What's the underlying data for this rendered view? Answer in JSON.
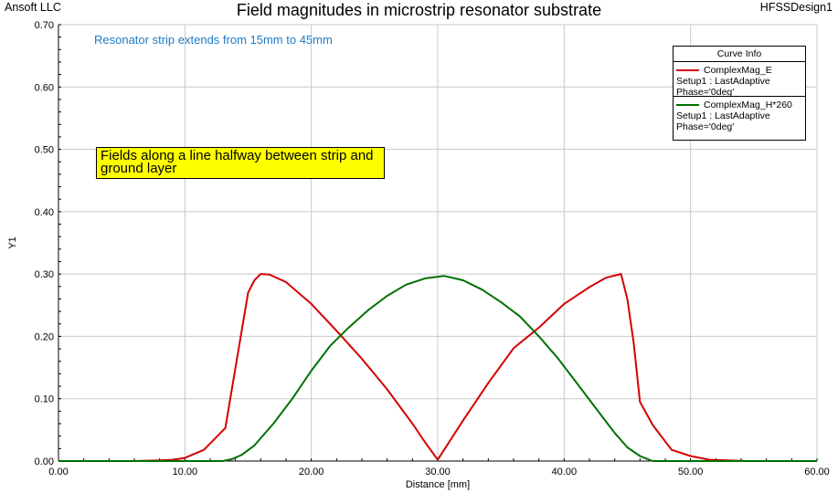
{
  "header": {
    "company": "Ansoft LLC",
    "design": "HFSSDesign1"
  },
  "annotations": {
    "strip_note": "Resonator strip extends from 15mm to 45mm",
    "fields_note": "Fields along a line halfway between strip and ground layer",
    "colors": {
      "strip_note": "#1e7cc8",
      "fields_box": "#ffff00"
    }
  },
  "legend": {
    "title": "Curve Info",
    "entries": [
      {
        "name": "ComplexMag_E",
        "line2": "Setup1 : LastAdaptive",
        "line3": "Phase='0deg'",
        "color": "#d40000"
      },
      {
        "name": "ComplexMag_H*260",
        "line2": "Setup1 : LastAdaptive",
        "line3": "Phase='0deg'",
        "color": "#007000"
      }
    ]
  },
  "chart_data": {
    "type": "line",
    "title": "Field magnitudes in microstrip resonator substrate",
    "xlabel": "Distance [mm]",
    "ylabel": "Y1",
    "xlim": [
      0,
      60
    ],
    "ylim": [
      0,
      0.7
    ],
    "xticks": [
      "0.00",
      "10.00",
      "20.00",
      "30.00",
      "40.00",
      "50.00",
      "60.00"
    ],
    "yticks": [
      "0.00",
      "0.10",
      "0.20",
      "0.30",
      "0.40",
      "0.50",
      "0.60",
      "0.70"
    ],
    "grid": true,
    "legend_position": "top-right",
    "series": [
      {
        "name": "ComplexMag_E",
        "color": "#d40000",
        "x": [
          6.0,
          8.0,
          9.0,
          10.0,
          11.5,
          13.2,
          14.0,
          14.5,
          15.0,
          15.5,
          16.0,
          16.7,
          18.0,
          20.0,
          22.0,
          24.0,
          26.0,
          28.0,
          29.0,
          30.0,
          32.0,
          34.0,
          36.0,
          38.0,
          40.0,
          42.0,
          43.3,
          44.5,
          45.0,
          45.5,
          46.0,
          47.0,
          48.5,
          50.0,
          51.5,
          54.5
        ],
        "y": [
          0.0,
          0.001,
          0.002,
          0.005,
          0.018,
          0.053,
          0.15,
          0.21,
          0.27,
          0.29,
          0.3,
          0.299,
          0.287,
          0.252,
          0.209,
          0.164,
          0.115,
          0.06,
          0.03,
          0.002,
          0.065,
          0.125,
          0.181,
          0.214,
          0.252,
          0.279,
          0.294,
          0.3,
          0.26,
          0.19,
          0.095,
          0.058,
          0.018,
          0.008,
          0.002,
          0.0
        ]
      },
      {
        "name": "ComplexMag_H*260",
        "color": "#007000",
        "x": [
          0,
          13.0,
          13.7,
          14.5,
          15.5,
          17.0,
          18.5,
          20.0,
          21.5,
          23.0,
          24.5,
          26.0,
          27.5,
          29.0,
          30.5,
          32.0,
          33.5,
          35.0,
          36.5,
          38.0,
          39.5,
          41.0,
          42.5,
          44.0,
          45.0,
          46.0,
          46.5,
          47.0,
          60.0
        ],
        "y": [
          0,
          0.0,
          0.003,
          0.01,
          0.025,
          0.06,
          0.1,
          0.145,
          0.185,
          0.215,
          0.242,
          0.265,
          0.283,
          0.293,
          0.297,
          0.29,
          0.275,
          0.255,
          0.232,
          0.2,
          0.165,
          0.125,
          0.085,
          0.045,
          0.022,
          0.008,
          0.004,
          0.0,
          0.0
        ]
      }
    ]
  }
}
